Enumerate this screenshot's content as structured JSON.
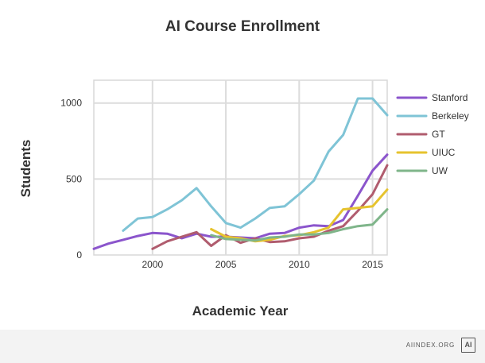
{
  "chart_data": {
    "type": "line",
    "title": "AI Course Enrollment",
    "xlabel": "Academic Year",
    "ylabel": "Students",
    "xlim": [
      1996,
      2016
    ],
    "ylim": [
      0,
      1150
    ],
    "x_ticks": [
      2000,
      2005,
      2010,
      2015
    ],
    "y_ticks": [
      0,
      500,
      1000
    ],
    "grid": true,
    "legend_position": "right",
    "series": [
      {
        "name": "Stanford",
        "color": "#8b55cc",
        "points": [
          [
            1996,
            40
          ],
          [
            1997,
            75
          ],
          [
            1998,
            100
          ],
          [
            1999,
            125
          ],
          [
            2000,
            145
          ],
          [
            2001,
            140
          ],
          [
            2002,
            110
          ],
          [
            2003,
            140
          ],
          [
            2004,
            120
          ],
          [
            2005,
            120
          ],
          [
            2006,
            115
          ],
          [
            2007,
            110
          ],
          [
            2008,
            140
          ],
          [
            2009,
            145
          ],
          [
            2010,
            180
          ],
          [
            2011,
            195
          ],
          [
            2012,
            190
          ],
          [
            2013,
            230
          ],
          [
            2014,
            390
          ],
          [
            2015,
            555
          ],
          [
            2016,
            660
          ]
        ]
      },
      {
        "name": "Berkeley",
        "color": "#7fc4d6",
        "points": [
          [
            1998,
            160
          ],
          [
            1999,
            240
          ],
          [
            2000,
            250
          ],
          [
            2001,
            300
          ],
          [
            2002,
            360
          ],
          [
            2003,
            440
          ],
          [
            2004,
            320
          ],
          [
            2005,
            210
          ],
          [
            2006,
            180
          ],
          [
            2007,
            240
          ],
          [
            2008,
            310
          ],
          [
            2009,
            320
          ],
          [
            2010,
            400
          ],
          [
            2011,
            490
          ],
          [
            2012,
            680
          ],
          [
            2013,
            790
          ],
          [
            2014,
            1030
          ],
          [
            2015,
            1030
          ],
          [
            2016,
            920
          ]
        ]
      },
      {
        "name": "GT",
        "color": "#b05c6e",
        "points": [
          [
            2000,
            40
          ],
          [
            2001,
            90
          ],
          [
            2002,
            120
          ],
          [
            2003,
            150
          ],
          [
            2004,
            60
          ],
          [
            2005,
            130
          ],
          [
            2006,
            80
          ],
          [
            2007,
            110
          ],
          [
            2008,
            85
          ],
          [
            2009,
            90
          ],
          [
            2010,
            110
          ],
          [
            2011,
            120
          ],
          [
            2012,
            160
          ],
          [
            2013,
            190
          ],
          [
            2014,
            290
          ],
          [
            2015,
            400
          ],
          [
            2016,
            590
          ]
        ]
      },
      {
        "name": "UIUC",
        "color": "#e6c32e",
        "points": [
          [
            2004,
            170
          ],
          [
            2005,
            120
          ],
          [
            2006,
            110
          ],
          [
            2007,
            90
          ],
          [
            2008,
            100
          ],
          [
            2009,
            125
          ],
          [
            2010,
            130
          ],
          [
            2011,
            150
          ],
          [
            2012,
            180
          ],
          [
            2013,
            300
          ],
          [
            2014,
            310
          ],
          [
            2015,
            320
          ],
          [
            2016,
            430
          ]
        ]
      },
      {
        "name": "UW",
        "color": "#7fb58a",
        "points": [
          [
            2004,
            130
          ],
          [
            2005,
            105
          ],
          [
            2006,
            100
          ],
          [
            2007,
            95
          ],
          [
            2008,
            115
          ],
          [
            2009,
            120
          ],
          [
            2010,
            135
          ],
          [
            2011,
            135
          ],
          [
            2012,
            145
          ],
          [
            2013,
            170
          ],
          [
            2014,
            190
          ],
          [
            2015,
            200
          ],
          [
            2016,
            300
          ]
        ]
      }
    ]
  },
  "footer": {
    "source": "AIINDEX.ORG",
    "logo": "AI"
  }
}
